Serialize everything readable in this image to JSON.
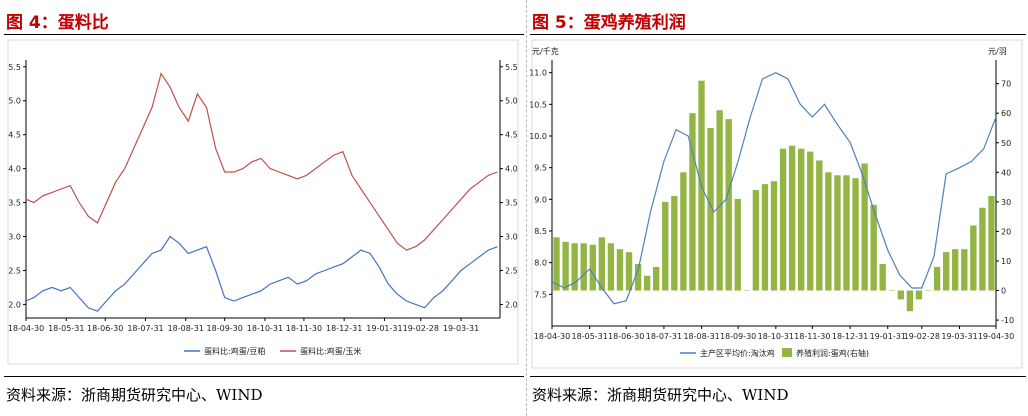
{
  "panels": [
    {
      "title": "图 4：蛋料比",
      "source": "资料来源：浙商期货研究中心、WIND",
      "chart_data": {
        "type": "line",
        "x_tick_labels": [
          "18-04-30",
          "18-05-31",
          "18-06-30",
          "18-07-31",
          "18-08-31",
          "18-09-30",
          "18-10-31",
          "18-11-30",
          "18-12-31",
          "19-01-31",
          "19-02-28",
          "19-03-31"
        ],
        "x_range": [
          "2018-04-30",
          "2019-04-30"
        ],
        "ylim": [
          1.8,
          5.6
        ],
        "y_ticks": [
          "2.0",
          "2.5",
          "3.0",
          "3.5",
          "4.0",
          "4.5",
          "5.0",
          "5.5"
        ],
        "y2_ticks": [
          "2.0",
          "2.5",
          "3.0",
          "3.5",
          "4.0",
          "4.5",
          "5.0",
          "5.5"
        ],
        "legend_position": "bottom",
        "series": [
          {
            "name": "蛋料比:鸡蛋/豆粕",
            "color": "#4472c4",
            "x": [
              "2018-04-30",
              "2018-05-06",
              "2018-05-13",
              "2018-05-20",
              "2018-05-27",
              "2018-06-03",
              "2018-06-10",
              "2018-06-17",
              "2018-06-24",
              "2018-07-01",
              "2018-07-08",
              "2018-07-15",
              "2018-07-22",
              "2018-07-29",
              "2018-08-05",
              "2018-08-12",
              "2018-08-19",
              "2018-08-26",
              "2018-09-02",
              "2018-09-09",
              "2018-09-16",
              "2018-09-23",
              "2018-09-30",
              "2018-10-07",
              "2018-10-14",
              "2018-10-21",
              "2018-10-28",
              "2018-11-04",
              "2018-11-11",
              "2018-11-18",
              "2018-11-25",
              "2018-12-02",
              "2018-12-09",
              "2018-12-16",
              "2018-12-23",
              "2018-12-30",
              "2019-01-06",
              "2019-01-13",
              "2019-01-20",
              "2019-01-27",
              "2019-02-03",
              "2019-02-10",
              "2019-02-17",
              "2019-02-24",
              "2019-03-03",
              "2019-03-10",
              "2019-03-17",
              "2019-03-24",
              "2019-03-31",
              "2019-04-07",
              "2019-04-14",
              "2019-04-21",
              "2019-04-28"
            ],
            "values": [
              2.05,
              2.1,
              2.2,
              2.25,
              2.2,
              2.25,
              2.1,
              1.95,
              1.9,
              2.05,
              2.2,
              2.3,
              2.45,
              2.6,
              2.75,
              2.8,
              3.0,
              2.9,
              2.75,
              2.8,
              2.85,
              2.5,
              2.1,
              2.05,
              2.1,
              2.15,
              2.2,
              2.3,
              2.35,
              2.4,
              2.3,
              2.35,
              2.45,
              2.5,
              2.55,
              2.6,
              2.7,
              2.8,
              2.75,
              2.55,
              2.3,
              2.15,
              2.05,
              2.0,
              1.95,
              2.1,
              2.2,
              2.35,
              2.5,
              2.6,
              2.7,
              2.8,
              2.85
            ]
          },
          {
            "name": "蛋料比:鸡蛋/玉米",
            "color": "#c0504d",
            "x": [
              "2018-04-30",
              "2018-05-06",
              "2018-05-13",
              "2018-05-20",
              "2018-05-27",
              "2018-06-03",
              "2018-06-10",
              "2018-06-17",
              "2018-06-24",
              "2018-07-01",
              "2018-07-08",
              "2018-07-15",
              "2018-07-22",
              "2018-07-29",
              "2018-08-05",
              "2018-08-12",
              "2018-08-19",
              "2018-08-26",
              "2018-09-02",
              "2018-09-09",
              "2018-09-16",
              "2018-09-23",
              "2018-09-30",
              "2018-10-07",
              "2018-10-14",
              "2018-10-21",
              "2018-10-28",
              "2018-11-04",
              "2018-11-11",
              "2018-11-18",
              "2018-11-25",
              "2018-12-02",
              "2018-12-09",
              "2018-12-16",
              "2018-12-23",
              "2018-12-30",
              "2019-01-06",
              "2019-01-13",
              "2019-01-20",
              "2019-01-27",
              "2019-02-03",
              "2019-02-10",
              "2019-02-17",
              "2019-02-24",
              "2019-03-03",
              "2019-03-10",
              "2019-03-17",
              "2019-03-24",
              "2019-03-31",
              "2019-04-07",
              "2019-04-14",
              "2019-04-21",
              "2019-04-28"
            ],
            "values": [
              3.55,
              3.5,
              3.6,
              3.65,
              3.7,
              3.75,
              3.5,
              3.3,
              3.2,
              3.5,
              3.8,
              4.0,
              4.3,
              4.6,
              4.9,
              5.4,
              5.2,
              4.9,
              4.7,
              5.1,
              4.9,
              4.3,
              3.95,
              3.95,
              4.0,
              4.1,
              4.15,
              4.0,
              3.95,
              3.9,
              3.85,
              3.9,
              4.0,
              4.1,
              4.2,
              4.25,
              3.9,
              3.7,
              3.5,
              3.3,
              3.1,
              2.9,
              2.8,
              2.85,
              2.95,
              3.1,
              3.25,
              3.4,
              3.55,
              3.7,
              3.8,
              3.9,
              3.95
            ]
          }
        ]
      }
    },
    {
      "title": "图 5：蛋鸡养殖利润",
      "source": "资料来源：浙商期货研究中心、WIND",
      "chart_data": {
        "type": "bar",
        "y_unit_left": "元/千克",
        "y_unit_right": "元/羽",
        "x_tick_labels": [
          "18-04-30",
          "18-05-31",
          "18-06-30",
          "18-07-31",
          "18-08-31",
          "18-09-30",
          "18-10-31",
          "18-11-30",
          "18-12-31",
          "19-01-31",
          "19-02-28",
          "19-03-31",
          "19-04-30"
        ],
        "ylim": [
          7.0,
          11.2
        ],
        "y2lim": [
          -12,
          78
        ],
        "y_ticks": [
          "7.5",
          "8.0",
          "8.5",
          "9.0",
          "9.5",
          "10.0",
          "10.5",
          "11.0"
        ],
        "y2_ticks": [
          "-10",
          "0",
          "10",
          "20",
          "30",
          "40",
          "50",
          "60",
          "70"
        ],
        "legend_position": "bottom",
        "series": [
          {
            "name": "主产区平均价:淘汰鸡",
            "type": "line",
            "axis": "left",
            "color": "#4f81bd",
            "x": [
              "2018-04-30",
              "2018-05-10",
              "2018-05-20",
              "2018-05-31",
              "2018-06-10",
              "2018-06-20",
              "2018-06-30",
              "2018-07-10",
              "2018-07-20",
              "2018-07-31",
              "2018-08-10",
              "2018-08-20",
              "2018-08-31",
              "2018-09-10",
              "2018-09-20",
              "2018-09-30",
              "2018-10-10",
              "2018-10-20",
              "2018-10-31",
              "2018-11-10",
              "2018-11-20",
              "2018-11-30",
              "2018-12-10",
              "2018-12-20",
              "2018-12-31",
              "2019-01-10",
              "2019-01-20",
              "2019-01-31",
              "2019-02-10",
              "2019-02-20",
              "2019-02-28",
              "2019-03-10",
              "2019-03-20",
              "2019-03-31",
              "2019-04-10",
              "2019-04-20",
              "2019-04-30"
            ],
            "values": [
              7.7,
              7.6,
              7.7,
              7.9,
              7.6,
              7.35,
              7.4,
              7.9,
              8.8,
              9.6,
              10.1,
              10.0,
              9.2,
              8.8,
              9.0,
              9.6,
              10.3,
              10.9,
              11.0,
              10.9,
              10.5,
              10.3,
              10.5,
              10.2,
              9.9,
              9.4,
              8.8,
              8.2,
              7.8,
              7.6,
              7.6,
              8.1,
              9.4,
              9.5,
              9.6,
              9.8,
              10.3
            ]
          },
          {
            "name": "养殖利润:蛋鸡(右轴)",
            "type": "bar",
            "axis": "right",
            "color": "#92b544",
            "values": [
              18,
              16.5,
              16,
              16,
              15.5,
              18,
              16,
              14,
              13,
              9,
              5,
              8,
              30,
              32,
              40,
              60,
              71,
              55,
              61,
              58,
              31,
              0,
              34,
              36,
              37,
              48,
              49,
              48,
              47,
              44,
              40,
              39,
              39,
              38,
              43,
              29,
              9,
              0,
              -3,
              -7,
              -3,
              0,
              8,
              13,
              14,
              14,
              22,
              28,
              32
            ]
          }
        ]
      }
    }
  ]
}
